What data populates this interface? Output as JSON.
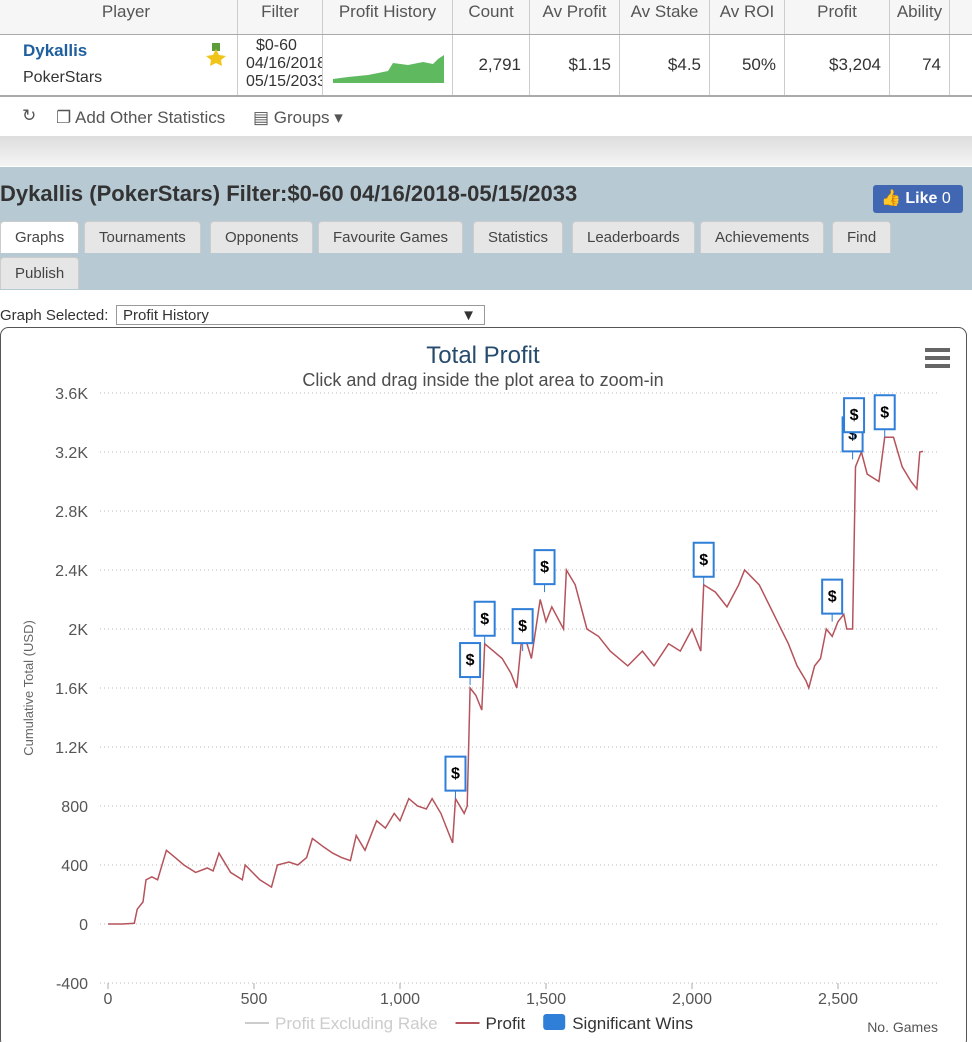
{
  "table": {
    "headers": [
      "Player",
      "Filter",
      "Profit History",
      "Count",
      "Av Profit",
      "Av Stake",
      "Av ROI",
      "Profit",
      "Ability"
    ],
    "row": {
      "player": "Dykallis",
      "site": "PokerStars",
      "filter": [
        "$0-60",
        "04/16/2018",
        "05/15/2033"
      ],
      "count": "2,791",
      "av_profit": "$1.15",
      "av_stake": "$4.5",
      "av_roi": "50%",
      "profit": "$3,204",
      "ability": "74"
    }
  },
  "toolbar": [
    "Add Other Statistics",
    "Groups"
  ],
  "header": {
    "title": "Dykallis (PokerStars) Filter:$0-60 04/16/2018-05/15/2033",
    "like": "Like",
    "like_count": "0"
  },
  "tabs": [
    "Graphs",
    "Tournaments",
    "Opponents",
    "Favourite Games",
    "Statistics",
    "Leaderboards",
    "Achievements",
    "Find",
    "Publish"
  ],
  "graph_select": {
    "label": "Graph Selected:",
    "value": "Profit History"
  },
  "chart_data": {
    "type": "line",
    "title": "Total Profit",
    "subtitle": "Click and drag inside the plot area to zoom-in",
    "ylabel": "Cumulative Total (USD)",
    "xlabel": "No. Games",
    "xlim": [
      0,
      2800
    ],
    "ylim": [
      -400,
      3600
    ],
    "xticks": [
      0,
      500,
      {
        "value": 1000,
        "label": "1,000"
      },
      {
        "value": 1500,
        "label": "1,500"
      },
      {
        "value": 2000,
        "label": "2,000"
      },
      {
        "value": 2500,
        "label": "2,500"
      }
    ],
    "yticks": [
      -400,
      0,
      400,
      800,
      {
        "value": 1200,
        "label": "1.2K"
      },
      {
        "value": 1600,
        "label": "1.6K"
      },
      {
        "value": 2000,
        "label": "2K"
      },
      {
        "value": 2400,
        "label": "2.4K"
      },
      {
        "value": 2800,
        "label": "2.8K"
      },
      {
        "value": 3200,
        "label": "3.2K"
      },
      {
        "value": 3600,
        "label": "3.6K"
      }
    ],
    "grid": true,
    "x": [
      0,
      50,
      90,
      100,
      120,
      130,
      150,
      170,
      200,
      230,
      260,
      300,
      340,
      360,
      380,
      420,
      460,
      470,
      520,
      560,
      580,
      620,
      650,
      680,
      700,
      740,
      770,
      800,
      830,
      850,
      880,
      920,
      950,
      980,
      1000,
      1030,
      1060,
      1090,
      1110,
      1140,
      1170,
      1180,
      1190,
      1220,
      1230,
      1240,
      1260,
      1280,
      1290,
      1320,
      1350,
      1380,
      1400,
      1420,
      1450,
      1480,
      1500,
      1520,
      1560,
      1570,
      1600,
      1640,
      1680,
      1720,
      1780,
      1830,
      1870,
      1920,
      1960,
      2000,
      2030,
      2040,
      2080,
      2120,
      2160,
      2180,
      2230,
      2280,
      2330,
      2360,
      2390,
      2400,
      2420,
      2440,
      2460,
      2480,
      2500,
      2520,
      2530,
      2550,
      2560,
      2580,
      2600,
      2640,
      2660,
      2690,
      2720,
      2750,
      2770,
      2780,
      2791
    ],
    "series": [
      {
        "name": "Profit",
        "color": "#b5535b",
        "values": [
          0,
          0,
          5,
          100,
          150,
          300,
          320,
          300,
          500,
          450,
          400,
          350,
          380,
          360,
          480,
          350,
          300,
          400,
          300,
          250,
          400,
          420,
          400,
          450,
          580,
          520,
          480,
          450,
          430,
          600,
          500,
          700,
          650,
          750,
          700,
          850,
          800,
          780,
          850,
          750,
          600,
          550,
          850,
          750,
          800,
          1600,
          1550,
          1450,
          1900,
          1850,
          1800,
          1700,
          1600,
          2000,
          1800,
          2200,
          2050,
          2150,
          2000,
          2400,
          2300,
          2000,
          1950,
          1850,
          1750,
          1850,
          1750,
          1900,
          1850,
          2000,
          1850,
          2300,
          2250,
          2150,
          2300,
          2400,
          2300,
          2100,
          1900,
          1750,
          1650,
          1600,
          1750,
          1800,
          2000,
          1950,
          2050,
          2100,
          2000,
          2000,
          3100,
          3200,
          3050,
          3000,
          3300,
          3300,
          3100,
          3000,
          2950,
          3200,
          3204
        ]
      }
    ],
    "hidden_series": [
      {
        "name": "Profit Excluding Rake",
        "color": "#cccccc"
      }
    ],
    "flags": {
      "name": "Significant Wins",
      "color": "#2f7ed8",
      "text": "$",
      "x": [
        1190,
        1240,
        1290,
        1420,
        1495,
        2040,
        2480,
        2550,
        2555,
        2660
      ],
      "y": [
        850,
        1620,
        1900,
        1850,
        2250,
        2300,
        2050,
        3150,
        3280,
        3300
      ]
    }
  }
}
